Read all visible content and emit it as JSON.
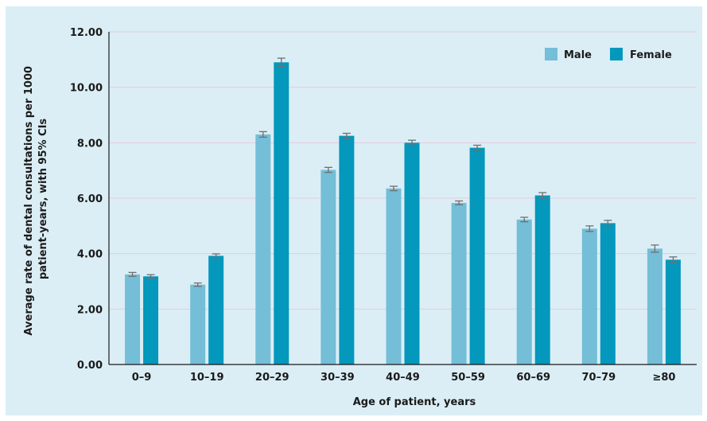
{
  "chart_data": {
    "type": "bar",
    "title": "",
    "xlabel": "Age of patient, years",
    "ylabel": "Average rate of dental consultations per 1000 patient-years, with 95% CIs",
    "ylabel_lines": [
      "Average rate of dental consultations per 1000",
      "patient-years, with 95% CIs"
    ],
    "ylim": [
      0,
      12
    ],
    "yticks": [
      "0.00",
      "2.00",
      "4.00",
      "6.00",
      "8.00",
      "10.00",
      "12.00"
    ],
    "grid": true,
    "legend_position": "top-right",
    "categories": [
      "0–9",
      "10–19",
      "20–29",
      "30–39",
      "40–49",
      "50–59",
      "60–69",
      "70–79",
      "≥80"
    ],
    "series": [
      {
        "name": "Male",
        "color": "#74bed7",
        "values": [
          3.25,
          2.88,
          8.3,
          7.02,
          6.35,
          5.83,
          5.23,
          4.9,
          4.18
        ],
        "ci_low": [
          3.18,
          2.82,
          8.2,
          6.93,
          6.27,
          5.76,
          5.15,
          4.8,
          4.05
        ],
        "ci_high": [
          3.32,
          2.94,
          8.4,
          7.11,
          6.43,
          5.9,
          5.31,
          5.0,
          4.31
        ]
      },
      {
        "name": "Female",
        "color": "#0498bd",
        "values": [
          3.18,
          3.92,
          10.9,
          8.25,
          8.0,
          7.82,
          6.1,
          5.1,
          3.78
        ],
        "ci_low": [
          3.12,
          3.85,
          10.75,
          8.16,
          7.91,
          7.73,
          6.0,
          5.0,
          3.68
        ],
        "ci_high": [
          3.24,
          3.99,
          11.05,
          8.34,
          8.09,
          7.91,
          6.2,
          5.2,
          3.88
        ]
      }
    ]
  }
}
